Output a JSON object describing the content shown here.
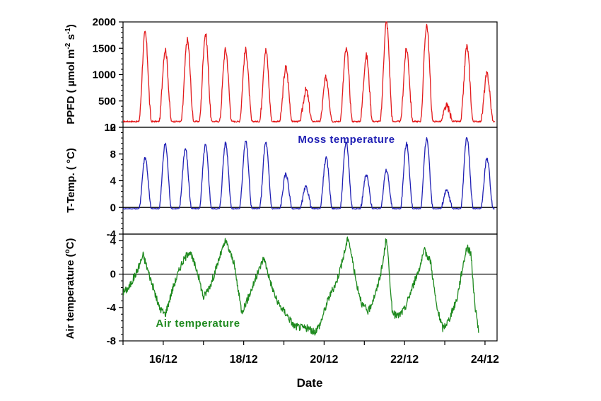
{
  "chart_data": {
    "x_title": "Date",
    "x_ticks": [
      "16/12",
      "18/12",
      "20/12",
      "22/12",
      "24/12"
    ],
    "x_tick_days": [
      16,
      18,
      20,
      22,
      24
    ],
    "x_range_days": [
      15,
      24.3
    ],
    "panels": [
      {
        "type": "line",
        "ylabel_parts": [
          "PPFD ( µmol m",
          "-2",
          " s",
          "-1",
          ")"
        ],
        "ylim": [
          0,
          2000
        ],
        "y_ticks": [
          "0",
          "500",
          "1000",
          "1500",
          "2000"
        ],
        "y_tick_values": [
          0,
          500,
          1000,
          1500,
          2000
        ],
        "color": "#e31a1c",
        "series_label": "",
        "zero_line": false,
        "baseline": 110,
        "peaks": [
          {
            "day": 15.55,
            "value": 1780
          },
          {
            "day": 16.05,
            "value": 1480
          },
          {
            "day": 16.6,
            "value": 1650
          },
          {
            "day": 17.05,
            "value": 1770
          },
          {
            "day": 17.55,
            "value": 1470
          },
          {
            "day": 18.05,
            "value": 1460
          },
          {
            "day": 18.55,
            "value": 1460
          },
          {
            "day": 19.05,
            "value": 1130
          },
          {
            "day": 19.55,
            "value": 700
          },
          {
            "day": 20.05,
            "value": 940
          },
          {
            "day": 20.55,
            "value": 1470
          },
          {
            "day": 21.05,
            "value": 1350
          },
          {
            "day": 21.55,
            "value": 2000
          },
          {
            "day": 22.05,
            "value": 1480
          },
          {
            "day": 22.55,
            "value": 1940
          },
          {
            "day": 23.05,
            "value": 400
          },
          {
            "day": 23.55,
            "value": 1530
          },
          {
            "day": 24.05,
            "value": 1000
          }
        ]
      },
      {
        "type": "line",
        "ylabel_parts": [
          "T-Temp. ( °C)"
        ],
        "ylim": [
          -4,
          12
        ],
        "y_ticks": [
          "-4",
          "0",
          "4",
          "8",
          "12"
        ],
        "y_tick_values": [
          -4,
          0,
          4,
          8,
          12
        ],
        "color": "#1f1fb4",
        "series_label": "Moss temperature",
        "zero_line": true,
        "baseline": -0.2,
        "peaks": [
          {
            "day": 15.55,
            "value": 7.5
          },
          {
            "day": 16.05,
            "value": 9.5
          },
          {
            "day": 16.55,
            "value": 8.8
          },
          {
            "day": 17.05,
            "value": 9.3
          },
          {
            "day": 17.55,
            "value": 9.6
          },
          {
            "day": 18.05,
            "value": 10
          },
          {
            "day": 18.55,
            "value": 9.7
          },
          {
            "day": 19.05,
            "value": 5
          },
          {
            "day": 19.55,
            "value": 3
          },
          {
            "day": 20.05,
            "value": 7.3
          },
          {
            "day": 20.55,
            "value": 9.8
          },
          {
            "day": 21.05,
            "value": 4.8
          },
          {
            "day": 21.55,
            "value": 5.5
          },
          {
            "day": 22.05,
            "value": 9.5
          },
          {
            "day": 22.55,
            "value": 10.3
          },
          {
            "day": 23.05,
            "value": 2.5
          },
          {
            "day": 23.55,
            "value": 10.5
          },
          {
            "day": 24.05,
            "value": 7.3
          }
        ]
      },
      {
        "type": "line",
        "ylabel_parts": [
          "Air temperature  (",
          "o",
          "C)"
        ],
        "ylim": [
          -8,
          4.8
        ],
        "y_ticks": [
          "-8",
          "-4",
          "0",
          "4"
        ],
        "y_tick_values": [
          -8,
          -4,
          0,
          4
        ],
        "color": "#1f8a1f",
        "series_label": "Air temperature",
        "zero_line": true,
        "points": [
          [
            15.0,
            -2.2
          ],
          [
            15.15,
            -1.6
          ],
          [
            15.35,
            0.4
          ],
          [
            15.5,
            2.3
          ],
          [
            15.7,
            -0.8
          ],
          [
            15.9,
            -4.0
          ],
          [
            16.05,
            -4.8
          ],
          [
            16.25,
            -1.5
          ],
          [
            16.45,
            1.2
          ],
          [
            16.65,
            2.8
          ],
          [
            16.85,
            0.3
          ],
          [
            17.0,
            -2.8
          ],
          [
            17.2,
            -1.0
          ],
          [
            17.4,
            2.0
          ],
          [
            17.55,
            4.0
          ],
          [
            17.75,
            1.5
          ],
          [
            17.95,
            -4.5
          ],
          [
            18.1,
            -3.0
          ],
          [
            18.3,
            -0.5
          ],
          [
            18.5,
            2.0
          ],
          [
            18.7,
            -1.5
          ],
          [
            18.85,
            -3.5
          ],
          [
            19.05,
            -4.7
          ],
          [
            19.25,
            -6.2
          ],
          [
            19.45,
            -6.4
          ],
          [
            19.6,
            -6.5
          ],
          [
            19.75,
            -7.0
          ],
          [
            19.9,
            -6.0
          ],
          [
            20.1,
            -3.0
          ],
          [
            20.3,
            -1.0
          ],
          [
            20.45,
            1.5
          ],
          [
            20.6,
            4.5
          ],
          [
            20.8,
            -1.0
          ],
          [
            20.95,
            -3.7
          ],
          [
            21.1,
            -4.5
          ],
          [
            21.3,
            -2.0
          ],
          [
            21.45,
            1.0
          ],
          [
            21.55,
            4.5
          ],
          [
            21.7,
            -4.8
          ],
          [
            21.85,
            -5.0
          ],
          [
            22.0,
            -4.2
          ],
          [
            22.2,
            -1.5
          ],
          [
            22.35,
            0.5
          ],
          [
            22.5,
            2.8
          ],
          [
            22.65,
            1.5
          ],
          [
            22.8,
            -4.0
          ],
          [
            22.95,
            -6.5
          ],
          [
            23.1,
            -5.5
          ],
          [
            23.3,
            -3.0
          ],
          [
            23.45,
            1.0
          ],
          [
            23.55,
            3.3
          ],
          [
            23.65,
            2.5
          ],
          [
            23.75,
            -3.8
          ],
          [
            23.85,
            -7.0
          ]
        ]
      }
    ]
  }
}
